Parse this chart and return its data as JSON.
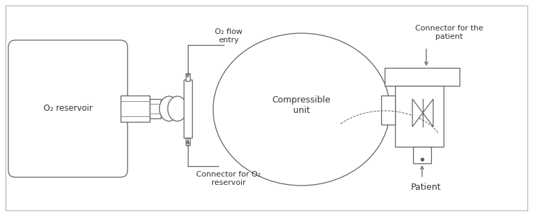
{
  "bg_color": "#ffffff",
  "line_color": "#606060",
  "text_color": "#333333",
  "lw": 0.9,
  "fig_width": 7.69,
  "fig_height": 3.12,
  "labels": {
    "o2_reservoir": "O₂ reservoir",
    "compressible_unit": "Compressible\nunit",
    "o2_flow_entry": "O₂ flow\nentry",
    "connector_o2": "Connector for O₂\nreservoir",
    "connector_patient": "Connector for the\npatient",
    "patient": "Patient"
  }
}
